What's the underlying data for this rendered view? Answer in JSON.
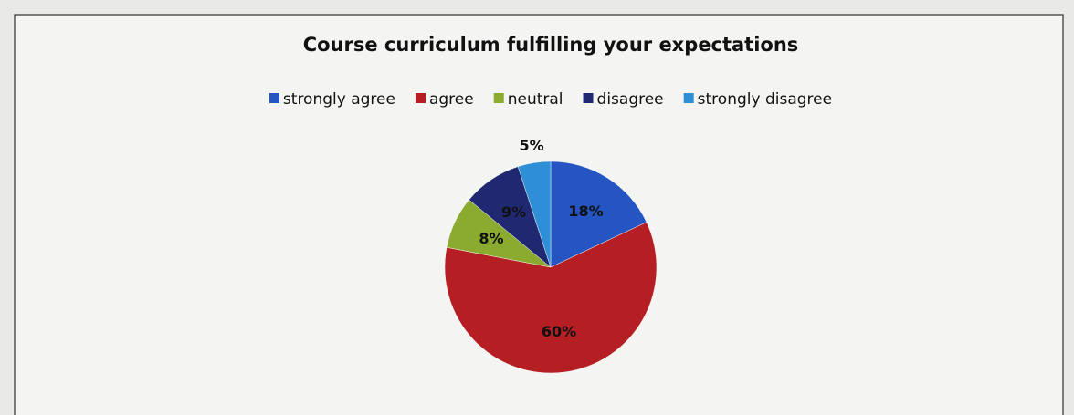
{
  "chart_data": {
    "type": "pie",
    "title": "Course curriculum fulfilling your expectations",
    "categories": [
      "strongly agree",
      "agree",
      "neutral",
      "disagree",
      "strongly disagree"
    ],
    "values": [
      18,
      60,
      8,
      9,
      5
    ],
    "value_labels": [
      "18%",
      "60%",
      "8%",
      "9%",
      "5%"
    ],
    "colors": [
      "#2455c3",
      "#b51f24",
      "#8bab30",
      "#1f2870",
      "#2f8fd6"
    ],
    "legend": "top"
  }
}
